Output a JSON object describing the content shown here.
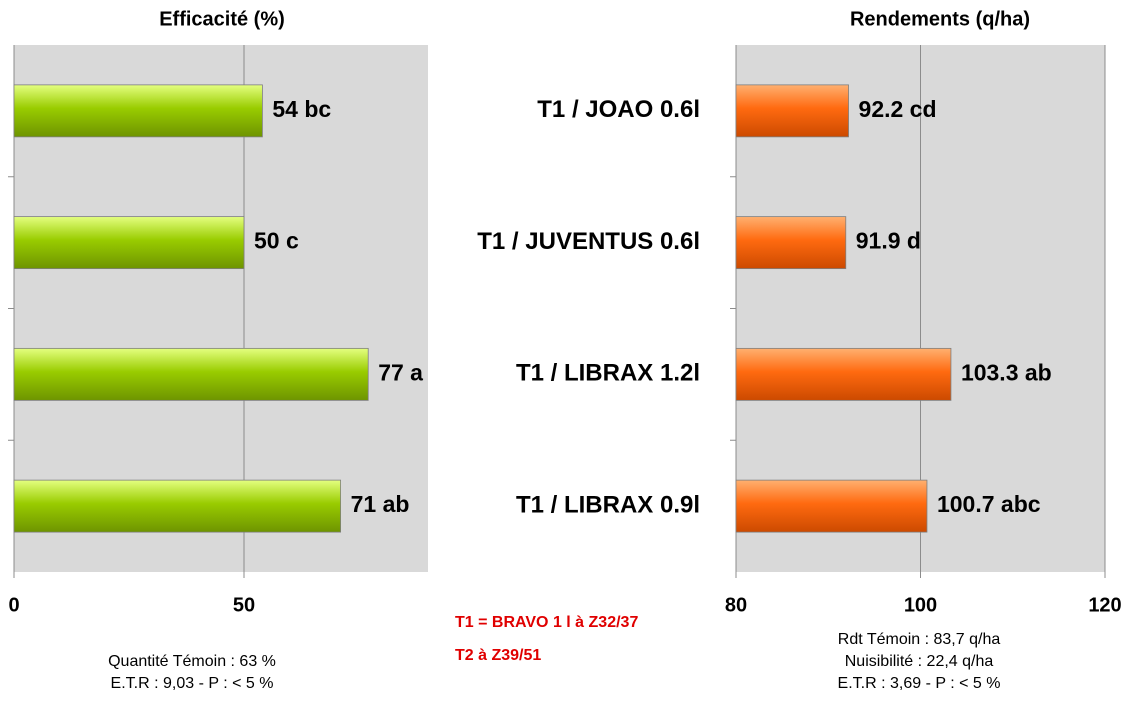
{
  "chart_data": [
    {
      "type": "hbar",
      "title": "Efficacité (%)",
      "values": [
        54,
        50,
        77,
        71
      ],
      "value_labels": [
        "54 bc",
        "50 c",
        "77 a",
        "71 ab"
      ],
      "color": "#99cc00",
      "xlim": [
        0,
        90
      ],
      "xticks": [
        0,
        50
      ],
      "grid": true,
      "notes": [
        "Quantité  Témoin : 63 %",
        "E.T.R : 9,03 -  P : < 5 %"
      ]
    },
    {
      "type": "hbar",
      "title": "Rendements  (q/ha)",
      "categories": [
        "T1 / JOAO 0.6l",
        "T1 / JUVENTUS 0.6l",
        "T1 / LIBRAX 1.2l",
        "T1 / LIBRAX 0.9l"
      ],
      "values": [
        92.2,
        91.9,
        103.3,
        100.7
      ],
      "value_labels": [
        "92.2 cd",
        "91.9 d",
        "103.3 ab",
        "100.7 abc"
      ],
      "color": "#ff6a10",
      "xlim": [
        80,
        120
      ],
      "xticks": [
        80,
        100,
        120
      ],
      "grid": true,
      "notes": [
        "Rdt Témoin : 83,7 q/ha",
        "Nuisibilité  : 22,4 q/ha",
        "E.T.R : 3,69 -  P : < 5 %"
      ]
    }
  ],
  "treatment_notes": [
    "T1 = BRAVO  1 l à Z32/37",
    "T2 à Z39/51"
  ]
}
